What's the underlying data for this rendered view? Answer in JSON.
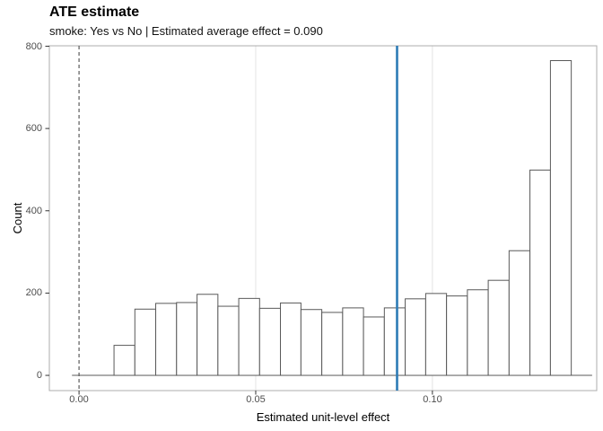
{
  "chart_data": {
    "type": "bar",
    "subtype": "histogram",
    "title": "ATE estimate",
    "subtitle": "smoke: Yes vs No | Estimated average effect = 0.090",
    "xlabel": "Estimated unit-level effect",
    "ylabel": "Count",
    "bin_edges": [
      0.0099,
      0.0158,
      0.0217,
      0.0276,
      0.0334,
      0.0393,
      0.0452,
      0.0511,
      0.057,
      0.0628,
      0.0687,
      0.0746,
      0.0805,
      0.0864,
      0.0923,
      0.0981,
      0.104,
      0.1099,
      0.1158,
      0.1217,
      0.1276,
      0.1334,
      0.1393
    ],
    "counts": [
      73,
      161,
      175,
      177,
      197,
      168,
      187,
      163,
      176,
      160,
      153,
      164,
      142,
      164,
      186,
      199,
      193,
      208,
      231,
      303,
      499,
      765
    ],
    "estimated_average_effect": 0.09,
    "x_ticks": [
      {
        "value": 0.0,
        "label": "0.00"
      },
      {
        "value": 0.05,
        "label": "0.05"
      },
      {
        "value": 0.1,
        "label": "0.10"
      }
    ],
    "y_ticks": [
      {
        "value": 0,
        "label": "0"
      },
      {
        "value": 200,
        "label": "200"
      },
      {
        "value": 400,
        "label": "400"
      },
      {
        "value": 600,
        "label": "600"
      },
      {
        "value": 800,
        "label": "800"
      }
    ],
    "xlim": [
      -0.0084,
      0.1465
    ],
    "ylim": [
      -37,
      801
    ],
    "gridlines": {
      "vertical_major": [
        0.05,
        0.1
      ],
      "horizontal_major": []
    },
    "zero_baseline": {
      "y": 0,
      "x_start": -0.002,
      "x_end": 0.1452
    },
    "reference_lines": [
      {
        "orientation": "vertical",
        "x": 0.0,
        "style": "dashed",
        "color": "#5a5a5a",
        "width": 1.2
      },
      {
        "orientation": "vertical",
        "x": 0.09,
        "style": "solid",
        "color": "#2d7bb6",
        "width": 2.6
      }
    ],
    "colors": {
      "bar_fill": "#ffffff",
      "bar_stroke": "#595959",
      "panel_border": "#acacac",
      "grid": "#e4e4e4",
      "axis_text": "#4d4d4d",
      "tick_mark": "#333333",
      "background": "#ffffff"
    },
    "legend": "none"
  }
}
